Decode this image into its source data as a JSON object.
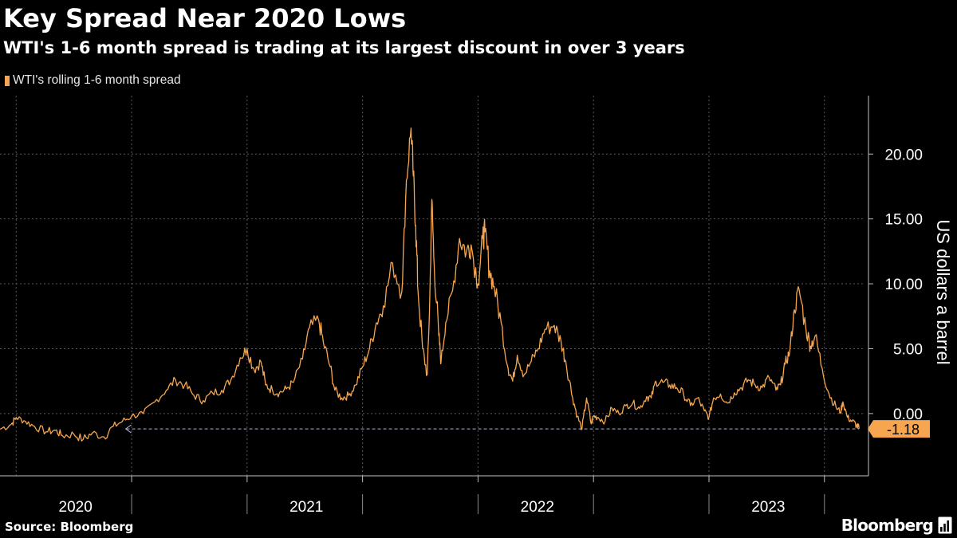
{
  "header": {
    "title": "Key Spread Near 2020 Lows",
    "subtitle": "WTI's 1-6 month spread is trading at its largest discount in over 3 years"
  },
  "footer": {
    "source": "Source: Bloomberg",
    "brand": "Bloomberg"
  },
  "colors": {
    "background": "#000000",
    "series": "#f7a64f",
    "grid": "#5a5a5a",
    "axis": "#bfbfbf",
    "reference_line": "#aeb4d8",
    "label_bg": "#f7a64f",
    "label_text": "#000000"
  },
  "chart_data": {
    "type": "line",
    "title": "Key Spread Near 2020 Lows",
    "subtitle": "WTI's 1-6 month spread is trading at its largest discount in over 3 years",
    "xlabel": "",
    "ylabel": "US dollars a barrel",
    "y_ticks": [
      0,
      5,
      10,
      15,
      20
    ],
    "y_tick_labels": [
      "0.00",
      "5.00",
      "10.00",
      "15.00",
      "20.00"
    ],
    "ylim": [
      -4.8,
      24.5
    ],
    "xlim": [
      2019.93,
      2023.67
    ],
    "x_tick_labels": [
      "2020",
      "2021",
      "2022",
      "2023"
    ],
    "x_label_positions": [
      2020.5,
      2021.5,
      2022.5,
      2023.5
    ],
    "x_year_boundaries": [
      2020.5,
      2021,
      2021.5,
      2022,
      2022.5,
      2023,
      2023.5
    ],
    "x_major_grid": [
      2020,
      2021,
      2022,
      2023
    ],
    "x_minor_grid": [
      2020.5,
      2021.5,
      2022.5,
      2023.5
    ],
    "grid": true,
    "legend": [
      "WTI's rolling 1-6 month spread"
    ],
    "legend_position": "top-left",
    "last_value": -1.18,
    "last_value_label": "-1.18",
    "reference_line": {
      "from_x": 2020.45,
      "to_x": 2023.65,
      "y": -1.18
    },
    "series": [
      {
        "name": "WTI's rolling 1-6 month spread",
        "x": [
          2019.93,
          2019.98,
          2020.0,
          2020.04,
          2020.08,
          2020.13,
          2020.17,
          2020.2,
          2020.25,
          2020.29,
          2020.33,
          2020.38,
          2020.42,
          2020.46,
          2020.5,
          2020.55,
          2020.6,
          2020.65,
          2020.69,
          2020.73,
          2020.77,
          2020.81,
          2020.85,
          2020.89,
          2020.93,
          2020.97,
          2021.0,
          2021.03,
          2021.06,
          2021.08,
          2021.11,
          2021.14,
          2021.17,
          2021.2,
          2021.24,
          2021.27,
          2021.31,
          2021.33,
          2021.36,
          2021.38,
          2021.41,
          2021.44,
          2021.47,
          2021.5,
          2021.53,
          2021.56,
          2021.59,
          2021.63,
          2021.67,
          2021.69,
          2021.71,
          2021.72,
          2021.73,
          2021.74,
          2021.76,
          2021.78,
          2021.79,
          2021.8,
          2021.81,
          2021.83,
          2021.84,
          2021.86,
          2021.89,
          2021.92,
          2021.95,
          2021.97,
          2022.0,
          2022.02,
          2022.03,
          2022.05,
          2022.07,
          2022.1,
          2022.13,
          2022.15,
          2022.17,
          2022.2,
          2022.23,
          2022.26,
          2022.29,
          2022.33,
          2022.36,
          2022.38,
          2022.41,
          2022.43,
          2022.45,
          2022.47,
          2022.49,
          2022.5,
          2022.52,
          2022.55,
          2022.58,
          2022.61,
          2022.64,
          2022.67,
          2022.7,
          2022.73,
          2022.75,
          2022.77,
          2022.8,
          2022.83,
          2022.86,
          2022.89,
          2022.92,
          2022.95,
          2022.98,
          2023.0,
          2023.02,
          2023.05,
          2023.08,
          2023.11,
          2023.14,
          2023.17,
          2023.2,
          2023.23,
          2023.26,
          2023.29,
          2023.31,
          2023.33,
          2023.35,
          2023.37,
          2023.39,
          2023.42,
          2023.44,
          2023.46,
          2023.49,
          2023.52,
          2023.55,
          2023.57,
          2023.58,
          2023.6,
          2023.62,
          2023.64,
          2023.65
        ],
        "values": [
          -1.2,
          -0.8,
          -0.3,
          -0.6,
          -1.0,
          -1.4,
          -1.3,
          -1.7,
          -1.6,
          -2.0,
          -1.5,
          -1.8,
          -1.0,
          -0.6,
          -0.2,
          0.0,
          0.9,
          1.8,
          2.6,
          2.2,
          1.4,
          1.0,
          1.6,
          1.8,
          2.6,
          4.3,
          5.0,
          3.4,
          4.0,
          2.2,
          1.8,
          1.6,
          1.9,
          2.4,
          4.2,
          6.6,
          7.2,
          5.5,
          3.6,
          1.8,
          1.2,
          1.4,
          2.2,
          3.6,
          5.0,
          7.0,
          8.3,
          11.6,
          9.4,
          18.0,
          22.0,
          18.3,
          14.5,
          9.5,
          5.0,
          3.0,
          8.0,
          16.5,
          11.5,
          6.0,
          4.0,
          7.0,
          9.5,
          13.5,
          12.5,
          13.0,
          10.0,
          13.5,
          14.0,
          11.0,
          9.8,
          7.0,
          3.5,
          2.5,
          4.5,
          3.0,
          4.0,
          5.0,
          6.5,
          6.8,
          5.5,
          4.0,
          1.2,
          -0.2,
          -1.2,
          1.2,
          -0.8,
          -0.2,
          -0.3,
          -0.6,
          0.4,
          0.0,
          0.6,
          0.8,
          0.4,
          1.3,
          1.2,
          2.5,
          2.4,
          2.2,
          2.0,
          1.5,
          0.6,
          1.2,
          0.2,
          -0.3,
          1.2,
          1.5,
          0.8,
          1.6,
          2.0,
          2.6,
          2.2,
          2.0,
          2.8,
          1.8,
          2.2,
          3.8,
          4.8,
          8.0,
          9.6,
          6.5,
          5.2,
          6.0,
          3.5,
          1.5,
          0.5,
          0.1,
          0.9,
          -0.3,
          -0.6,
          -0.9,
          -1.18
        ]
      }
    ]
  }
}
